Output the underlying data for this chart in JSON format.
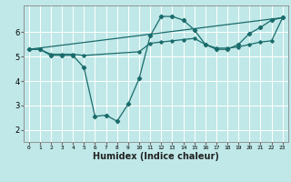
{
  "xlabel": "Humidex (Indice chaleur)",
  "bg_color": "#c0e8e8",
  "line_color": "#1a6b6b",
  "grid_color": "#ffffff",
  "xlim": [
    -0.5,
    23.5
  ],
  "ylim": [
    1.5,
    7.1
  ],
  "yticks": [
    2,
    3,
    4,
    5,
    6
  ],
  "xticks": [
    0,
    1,
    2,
    3,
    4,
    5,
    6,
    7,
    8,
    9,
    10,
    11,
    12,
    13,
    14,
    15,
    16,
    17,
    18,
    19,
    20,
    21,
    22,
    23
  ],
  "series1_x": [
    0,
    1,
    2,
    3,
    4,
    5,
    6,
    7,
    8,
    9,
    10,
    11,
    12,
    13,
    14,
    15,
    16,
    17,
    18,
    19,
    20,
    21,
    22,
    23
  ],
  "series1_y": [
    5.3,
    5.3,
    5.05,
    5.05,
    5.05,
    4.55,
    2.55,
    2.6,
    2.35,
    3.05,
    4.1,
    5.85,
    6.65,
    6.65,
    6.5,
    6.1,
    5.5,
    5.3,
    5.3,
    5.5,
    5.95,
    6.2,
    6.5,
    6.6
  ],
  "series2_x": [
    0,
    23
  ],
  "series2_y": [
    5.3,
    6.6
  ],
  "series3_x": [
    0,
    1,
    2,
    3,
    4,
    5,
    10,
    11,
    12,
    13,
    14,
    15,
    16,
    17,
    18,
    19,
    20,
    21,
    22,
    23
  ],
  "series3_y": [
    5.3,
    5.3,
    5.1,
    5.1,
    5.1,
    5.05,
    5.2,
    5.55,
    5.6,
    5.65,
    5.7,
    5.75,
    5.5,
    5.35,
    5.35,
    5.4,
    5.5,
    5.6,
    5.65,
    6.6
  ]
}
